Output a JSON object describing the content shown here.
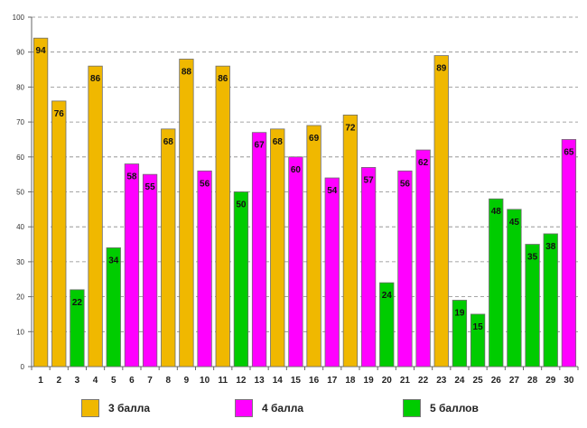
{
  "chart_data": {
    "type": "bar",
    "title": "",
    "xlabel": "",
    "ylabel": "",
    "ylim": [
      0,
      100
    ],
    "yticks": [
      0,
      10,
      20,
      30,
      40,
      50,
      60,
      70,
      80,
      90,
      100
    ],
    "grid": true,
    "categories": [
      "1",
      "2",
      "3",
      "4",
      "5",
      "6",
      "7",
      "8",
      "9",
      "10",
      "11",
      "12",
      "13",
      "14",
      "15",
      "16",
      "17",
      "18",
      "19",
      "20",
      "21",
      "22",
      "23",
      "24",
      "25",
      "26",
      "27",
      "28",
      "29",
      "30"
    ],
    "values": [
      94,
      76,
      22,
      86,
      34,
      58,
      55,
      68,
      88,
      56,
      86,
      50,
      67,
      68,
      60,
      69,
      54,
      72,
      57,
      24,
      56,
      62,
      89,
      19,
      15,
      48,
      45,
      35,
      38,
      65
    ],
    "groups": [
      "3",
      "3",
      "5",
      "3",
      "5",
      "4",
      "4",
      "3",
      "3",
      "4",
      "3",
      "5",
      "4",
      "3",
      "4",
      "3",
      "4",
      "3",
      "4",
      "5",
      "4",
      "4",
      "3",
      "5",
      "5",
      "5",
      "5",
      "5",
      "5",
      "4"
    ],
    "series": [
      {
        "key": "3",
        "name": "3 балла",
        "color": "#f0b800"
      },
      {
        "key": "4",
        "name": "4 балла",
        "color": "#ff00ff"
      },
      {
        "key": "5",
        "name": "5 баллов",
        "color": "#00cc00"
      }
    ],
    "legend_position": "bottom"
  }
}
